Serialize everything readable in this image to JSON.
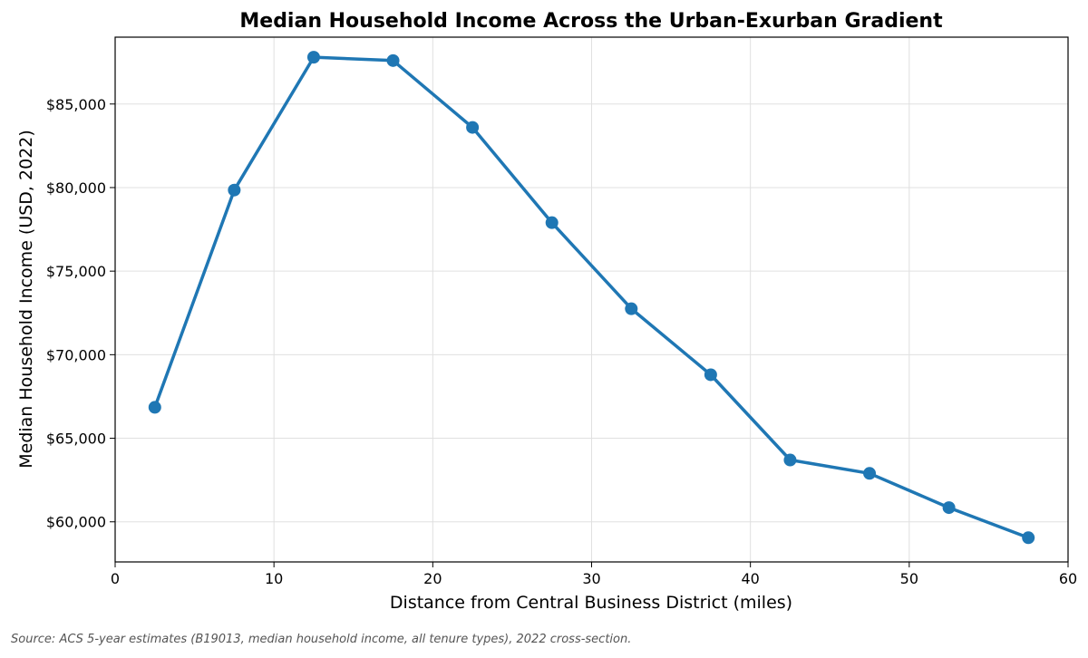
{
  "colors": {
    "series": "#1f77b4",
    "grid": "#e0e0e0",
    "axis": "#000000",
    "source_text": "#555555"
  },
  "source_note": "Source: ACS 5-year estimates (B19013, median household income, all tenure types), 2022 cross-section.",
  "chart_data": {
    "type": "line",
    "title": "Median Household Income Across the Urban-Exurban Gradient",
    "xlabel": "Distance from Central Business District (miles)",
    "ylabel": "Median Household Income (USD, 2022)",
    "xlim": [
      0,
      60
    ],
    "ylim": [
      57600,
      89000
    ],
    "x_ticks": [
      0,
      10,
      20,
      30,
      40,
      50,
      60
    ],
    "x_tick_labels": [
      "0",
      "10",
      "20",
      "30",
      "40",
      "50",
      "60"
    ],
    "y_ticks": [
      60000,
      65000,
      70000,
      75000,
      80000,
      85000
    ],
    "y_tick_labels": [
      "$60,000",
      "$65,000",
      "$70,000",
      "$75,000",
      "$80,000",
      "$85,000"
    ],
    "grid": true,
    "markers": "circle",
    "series": [
      {
        "x": [
          2.5,
          7.5,
          12.5,
          17.5,
          22.5,
          27.5,
          32.5,
          37.5,
          42.5,
          47.5,
          52.5,
          57.5
        ],
        "values": [
          66850,
          79850,
          87800,
          87600,
          83600,
          77900,
          72750,
          68800,
          63700,
          62900,
          60850,
          59050
        ]
      }
    ]
  }
}
